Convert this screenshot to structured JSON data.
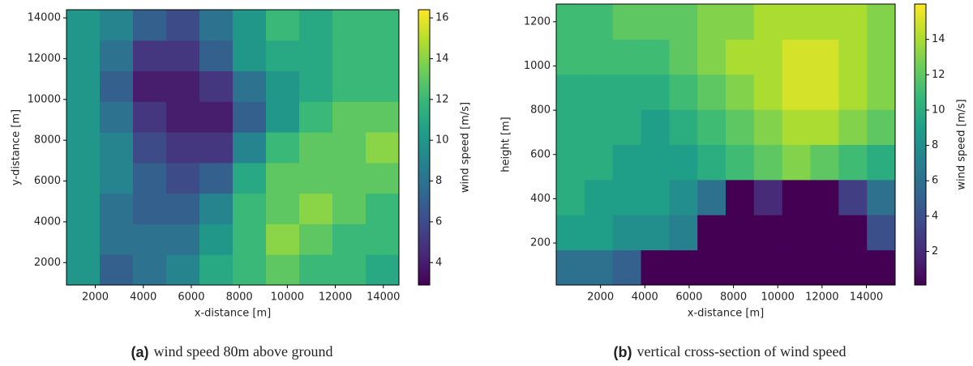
{
  "chart_data": [
    {
      "type": "heatmap",
      "xlabel": "x-distance [m]",
      "ylabel": "y-distance [m]",
      "colorbar_label": "wind speed [m/s]",
      "caption_label": "(a)",
      "caption": "wind speed 80m above ground",
      "colormap": "viridis",
      "xlim": [
        800,
        14650
      ],
      "ylim": [
        900,
        14400
      ],
      "clim": [
        2.9,
        16.4
      ],
      "xticks": [
        2000,
        4000,
        6000,
        8000,
        10000,
        12000,
        14000
      ],
      "yticks": [
        2000,
        4000,
        6000,
        8000,
        10000,
        12000,
        14000
      ],
      "cticks": [
        4,
        6,
        8,
        10,
        12,
        14,
        16
      ],
      "x_bins": [
        800,
        2185,
        3570,
        4955,
        6340,
        7725,
        9110,
        10495,
        11880,
        13265,
        14650
      ],
      "y_bins": [
        900,
        2400,
        3900,
        5400,
        6900,
        8400,
        9900,
        11400,
        12900,
        14400
      ],
      "z": [
        [
          10,
          7,
          8,
          9,
          11,
          12,
          13,
          12,
          12,
          11
        ],
        [
          10,
          8,
          8,
          8,
          10,
          12,
          14,
          13,
          12,
          12
        ],
        [
          10,
          8,
          7,
          7,
          9,
          12,
          13,
          14,
          13,
          12
        ],
        [
          10,
          9,
          7,
          6,
          7,
          11,
          13,
          13,
          13,
          13
        ],
        [
          10,
          9,
          6,
          5,
          5,
          9,
          12,
          13,
          13,
          14
        ],
        [
          10,
          8,
          5,
          4,
          4,
          7,
          10,
          12,
          13,
          13
        ],
        [
          10,
          7,
          4,
          4,
          5,
          8,
          10,
          11,
          12,
          12
        ],
        [
          10,
          8,
          5,
          5,
          7,
          10,
          11,
          11,
          12,
          12
        ],
        [
          10,
          9,
          7,
          6,
          8,
          10,
          12,
          11,
          12,
          12
        ]
      ]
    },
    {
      "type": "heatmap",
      "xlabel": "x-distance [m]",
      "ylabel": "height [m]",
      "colorbar_label": "wind speed [m/s]",
      "caption_label": "(b)",
      "caption": "vertical cross-section of wind speed",
      "colormap": "viridis",
      "xlim": [
        0,
        15300
      ],
      "ylim": [
        10,
        1280
      ],
      "clim": [
        0.1,
        16
      ],
      "xticks": [
        2000,
        4000,
        6000,
        8000,
        10000,
        12000,
        14000
      ],
      "yticks": [
        200,
        400,
        600,
        800,
        1000,
        1200
      ],
      "cticks": [
        2,
        4,
        6,
        8,
        10,
        12,
        14
      ],
      "x_bins": [
        0,
        1275,
        2550,
        3825,
        5100,
        6375,
        7650,
        8925,
        10200,
        11475,
        12750,
        14025,
        15300
      ],
      "y_bins": [
        10,
        168.75,
        327.5,
        486.25,
        645,
        803.75,
        962.5,
        1121.25,
        1280
      ],
      "z": [
        [
          6,
          6,
          5,
          0.1,
          0.1,
          0.1,
          0.1,
          0.1,
          0.1,
          0.1,
          0.1,
          0.1
        ],
        [
          9,
          9,
          8,
          8,
          7,
          0.1,
          0.1,
          0.1,
          0.1,
          0.1,
          0.1,
          4
        ],
        [
          10,
          9,
          9,
          9,
          8,
          6,
          0.1,
          2,
          0.1,
          0.1,
          3,
          6
        ],
        [
          10,
          10,
          9,
          9,
          9,
          10,
          11,
          12,
          13,
          12,
          11,
          10
        ],
        [
          10,
          10,
          10,
          9,
          10,
          11,
          12,
          13,
          14,
          14,
          13,
          12
        ],
        [
          10,
          10,
          10,
          10,
          11,
          12,
          13,
          14,
          15,
          15,
          14,
          13
        ],
        [
          11,
          11,
          11,
          11,
          12,
          13,
          14,
          14,
          15,
          15,
          14,
          13
        ],
        [
          11,
          11,
          12,
          12,
          12,
          13,
          13,
          14,
          14,
          14,
          14,
          13
        ]
      ]
    }
  ]
}
